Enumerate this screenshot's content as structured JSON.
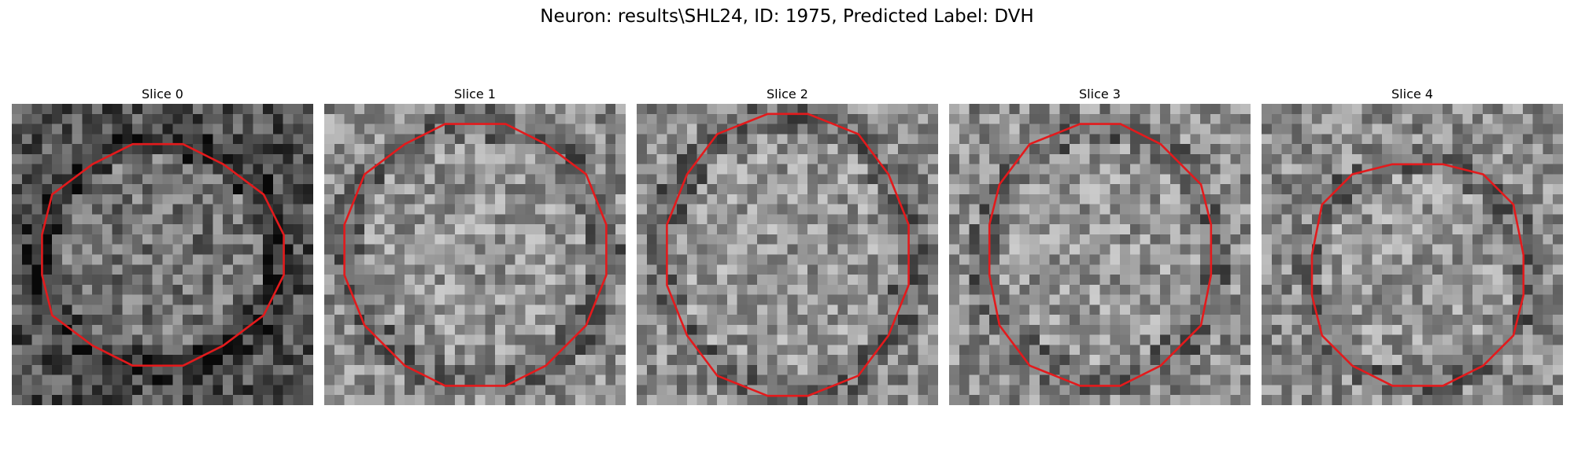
{
  "figure": {
    "title": "Neuron: results\\SHL24, ID: 1975, Predicted Label: DVH",
    "contour_color": "#e31a1c",
    "slices": [
      {
        "label": "Slice 0",
        "tone": "dark"
      },
      {
        "label": "Slice 1",
        "tone": "light"
      },
      {
        "label": "Slice 2",
        "tone": "light"
      },
      {
        "label": "Slice 3",
        "tone": "light"
      },
      {
        "label": "Slice 4",
        "tone": "light"
      }
    ]
  }
}
